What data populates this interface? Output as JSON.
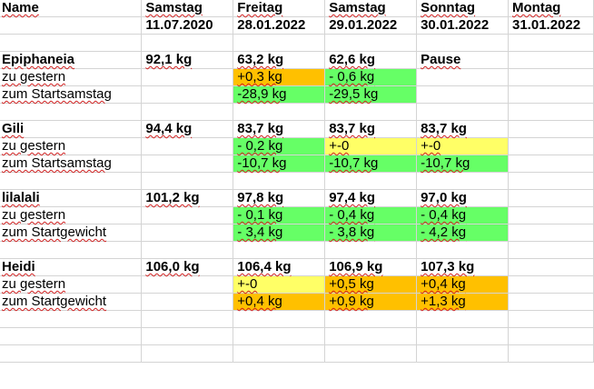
{
  "colors": {
    "green": "#66ff66",
    "yellow": "#ffff66",
    "orange": "#ffc000",
    "spellcheck": "#d02020",
    "gridline": "#d4d4d4"
  },
  "header": {
    "row1": [
      "Name",
      "Samstag",
      "Freitag",
      "Samstag",
      "Sonntag",
      "Montag"
    ],
    "row2": [
      "",
      "11.07.2020",
      "28.01.2022",
      "29.01.2022",
      "30.01.2022",
      "31.01.2022"
    ]
  },
  "people": [
    {
      "name": "Epiphaneia",
      "start": "92,1 kg",
      "values": [
        "63,2 kg",
        "62,6 kg",
        "Pause",
        ""
      ],
      "diff_label": "zu gestern",
      "diff": [
        {
          "text": "+0,3 kg",
          "color": "orange"
        },
        {
          "text": "- 0,6 kg",
          "color": "green"
        },
        {
          "text": "",
          "color": "none"
        },
        {
          "text": "",
          "color": "none"
        }
      ],
      "total_label": "zum Startsamstag",
      "total": [
        {
          "text": "-28,9 kg",
          "color": "green"
        },
        {
          "text": "-29,5 kg",
          "color": "green"
        },
        {
          "text": "",
          "color": "none"
        },
        {
          "text": "",
          "color": "none"
        }
      ]
    },
    {
      "name": "Gili",
      "start": "94,4 kg",
      "values": [
        "83,7 kg",
        "83,7 kg",
        "83,7 kg",
        ""
      ],
      "diff_label": "zu gestern",
      "diff": [
        {
          "text": "- 0,2 kg",
          "color": "green"
        },
        {
          "text": "+-0",
          "color": "yellow"
        },
        {
          "text": "+-0",
          "color": "yellow"
        },
        {
          "text": "",
          "color": "none"
        }
      ],
      "total_label": "zum Startsamstag",
      "total": [
        {
          "text": "-10,7 kg",
          "color": "green"
        },
        {
          "text": "-10,7 kg",
          "color": "green"
        },
        {
          "text": "-10,7 kg",
          "color": "green"
        },
        {
          "text": "",
          "color": "none"
        }
      ]
    },
    {
      "name": "lilalali",
      "start": "101,2 kg",
      "values": [
        "97,8 kg",
        "97,4 kg",
        "97,0 kg",
        ""
      ],
      "diff_label": "zu gestern",
      "diff": [
        {
          "text": "- 0,1 kg",
          "color": "green"
        },
        {
          "text": "- 0,4 kg",
          "color": "green"
        },
        {
          "text": "- 0,4 kg",
          "color": "green"
        },
        {
          "text": "",
          "color": "none"
        }
      ],
      "total_label": "zum Startgewicht",
      "total": [
        {
          "text": "- 3,4 kg",
          "color": "green"
        },
        {
          "text": "- 3,8 kg",
          "color": "green"
        },
        {
          "text": "- 4,2 kg",
          "color": "green"
        },
        {
          "text": "",
          "color": "none"
        }
      ]
    },
    {
      "name": "Heidi",
      "start": "106,0 kg",
      "values": [
        "106,4 kg",
        "106,9 kg",
        "107,3 kg",
        ""
      ],
      "diff_label": "zu gestern",
      "diff": [
        {
          "text": "+-0",
          "color": "yellow"
        },
        {
          "text": "+0,5 kg",
          "color": "orange"
        },
        {
          "text": "+0,4 kg",
          "color": "orange"
        },
        {
          "text": "",
          "color": "none"
        }
      ],
      "total_label": "zum Startgewicht",
      "total": [
        {
          "text": "+0,4 kg",
          "color": "orange"
        },
        {
          "text": "+0,9 kg",
          "color": "orange"
        },
        {
          "text": "+1,3 kg",
          "color": "orange"
        },
        {
          "text": "",
          "color": "none"
        }
      ]
    }
  ]
}
